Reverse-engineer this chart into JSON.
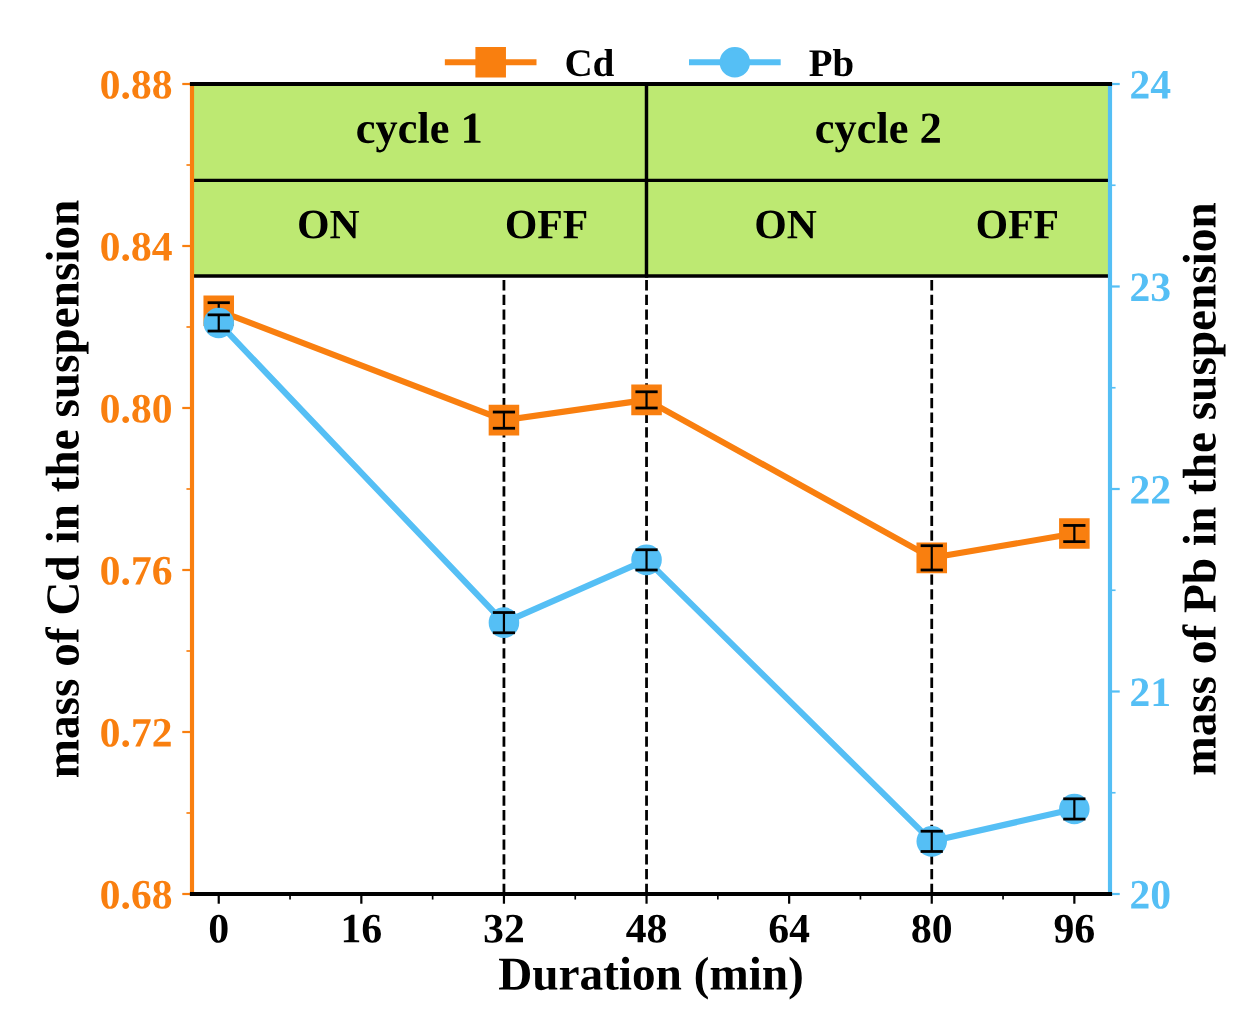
{
  "chart_data": {
    "type": "line",
    "xlabel": "Duration (min)",
    "ylabel": "mass of Cd in the suspension",
    "y2label": "mass of Pb in the suspension",
    "x": [
      0,
      32,
      48,
      80,
      96
    ],
    "series": [
      {
        "name": "Cd",
        "color": "#f97f0f",
        "marker": "square",
        "values": [
          0.824,
          0.797,
          0.802,
          0.763,
          0.769
        ],
        "errors": [
          0.002,
          0.002,
          0.002,
          0.003,
          0.002
        ]
      },
      {
        "name": "Pb",
        "color": "#55bff5",
        "marker": "circle",
        "axis": "y2",
        "values": [
          22.82,
          21.34,
          21.65,
          20.26,
          20.42
        ],
        "errors": [
          0.04,
          0.05,
          0.05,
          0.05,
          0.05
        ]
      }
    ],
    "xlim": [
      -3,
      100
    ],
    "xticks": [
      0,
      16,
      32,
      48,
      64,
      80,
      96
    ],
    "ylim": [
      0.68,
      0.88
    ],
    "yticks": [
      {
        "value": 0.68,
        "label": "0.68"
      },
      {
        "value": 0.72,
        "label": "0.72"
      },
      {
        "value": 0.76,
        "label": "0.76"
      },
      {
        "value": 0.8,
        "label": "0.80"
      },
      {
        "value": 0.84,
        "label": "0.84"
      },
      {
        "value": 0.88,
        "label": "0.88"
      }
    ],
    "y2lim": [
      20,
      24
    ],
    "y2ticks": [
      20,
      21,
      22,
      23,
      24
    ],
    "ref_lines": [
      {
        "axis": "x",
        "value": 32,
        "color": "#000000",
        "line_style": "dashed"
      },
      {
        "axis": "x",
        "value": 48,
        "color": "#000000",
        "line_style": "dashed"
      },
      {
        "axis": "x",
        "value": 80,
        "color": "#000000",
        "line_style": "dashed"
      }
    ],
    "annotations": [
      "cycle 1",
      "cycle 2",
      "ON",
      "OFF",
      "ON",
      "OFF"
    ],
    "legend": "top",
    "line_style": "solid"
  }
}
